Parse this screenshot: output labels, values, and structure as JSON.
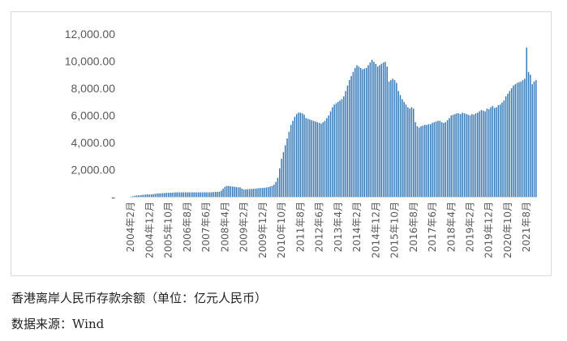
{
  "caption": {
    "title": "香港离岸人民币存款余额（单位：亿元人民币）",
    "source": "数据来源：Wind"
  },
  "chart_data": {
    "type": "bar",
    "title": "",
    "xlabel": "",
    "ylabel": "",
    "ylim": [
      0,
      12000
    ],
    "y_ticks": [
      {
        "value": 0,
        "label": "-"
      },
      {
        "value": 2000,
        "label": "2,000.00"
      },
      {
        "value": 4000,
        "label": "4,000.00"
      },
      {
        "value": 6000,
        "label": "6,000.00"
      },
      {
        "value": 8000,
        "label": "8,000.00"
      },
      {
        "value": 10000,
        "label": "10,000.00"
      },
      {
        "value": 12000,
        "label": "12,000.00"
      }
    ],
    "x_tick_labels": [
      "2004年2月",
      "2004年12月",
      "2005年10月",
      "2006年8月",
      "2007年6月",
      "2008年4月",
      "2009年2月",
      "2009年12月",
      "2010年10月",
      "2011年8月",
      "2012年6月",
      "2013年4月",
      "2014年2月",
      "2014年12月",
      "2015年10月",
      "2016年8月",
      "2017年6月",
      "2018年4月",
      "2019年2月",
      "2019年12月",
      "2020年10月",
      "2021年8月"
    ],
    "x_tick_every": 10,
    "bar_color": "#2e75b6",
    "categories": [
      "2004年2月",
      "2004年3月",
      "2004年4月",
      "2004年5月",
      "2004年6月",
      "2004年7月",
      "2004年8月",
      "2004年9月",
      "2004年10月",
      "2004年11月",
      "2004年12月",
      "2005年1月",
      "2005年2月",
      "2005年3月",
      "2005年4月",
      "2005年5月",
      "2005年6月",
      "2005年7月",
      "2005年8月",
      "2005年9月",
      "2005年10月",
      "2005年11月",
      "2005年12月",
      "2006年1月",
      "2006年2月",
      "2006年3月",
      "2006年4月",
      "2006年5月",
      "2006年6月",
      "2006年7月",
      "2006年8月",
      "2006年9月",
      "2006年10月",
      "2006年11月",
      "2006年12月",
      "2007年1月",
      "2007年2月",
      "2007年3月",
      "2007年4月",
      "2007年5月",
      "2007年6月",
      "2007年7月",
      "2007年8月",
      "2007年9月",
      "2007年10月",
      "2007年11月",
      "2007年12月",
      "2008年1月",
      "2008年2月",
      "2008年3月",
      "2008年4月",
      "2008年5月",
      "2008年6月",
      "2008年7月",
      "2008年8月",
      "2008年9月",
      "2008年10月",
      "2008年11月",
      "2008年12月",
      "2009年1月",
      "2009年2月",
      "2009年3月",
      "2009年4月",
      "2009年5月",
      "2009年6月",
      "2009年7月",
      "2009年8月",
      "2009年9月",
      "2009年10月",
      "2009年11月",
      "2009年12月",
      "2010年1月",
      "2010年2月",
      "2010年3月",
      "2010年4月",
      "2010年5月",
      "2010年6月",
      "2010年7月",
      "2010年8月",
      "2010年9月",
      "2010年10月",
      "2010年11月",
      "2010年12月",
      "2011年1月",
      "2011年2月",
      "2011年3月",
      "2011年4月",
      "2011年5月",
      "2011年6月",
      "2011年7月",
      "2011年8月",
      "2011年9月",
      "2011年10月",
      "2011年11月",
      "2011年12月",
      "2012年1月",
      "2012年2月",
      "2012年3月",
      "2012年4月",
      "2012年5月",
      "2012年6月",
      "2012年7月",
      "2012年8月",
      "2012年9月",
      "2012年10月",
      "2012年11月",
      "2012年12月",
      "2013年1月",
      "2013年2月",
      "2013年3月",
      "2013年4月",
      "2013年5月",
      "2013年6月",
      "2013年7月",
      "2013年8月",
      "2013年9月",
      "2013年10月",
      "2013年11月",
      "2013年12月",
      "2014年1月",
      "2014年2月",
      "2014年3月",
      "2014年4月",
      "2014年5月",
      "2014年6月",
      "2014年7月",
      "2014年8月",
      "2014年9月",
      "2014年10月",
      "2014年11月",
      "2014年12月",
      "2015年1月",
      "2015年2月",
      "2015年3月",
      "2015年4月",
      "2015年5月",
      "2015年6月",
      "2015年7月",
      "2015年8月",
      "2015年9月",
      "2015年10月",
      "2015年11月",
      "2015年12月",
      "2016年1月",
      "2016年2月",
      "2016年3月",
      "2016年4月",
      "2016年5月",
      "2016年6月",
      "2016年7月",
      "2016年8月",
      "2016年9月",
      "2016年10月",
      "2016年11月",
      "2016年12月",
      "2017年1月",
      "2017年2月",
      "2017年3月",
      "2017年4月",
      "2017年5月",
      "2017年6月",
      "2017年7月",
      "2017年8月",
      "2017年9月",
      "2017年10月",
      "2017年11月",
      "2017年12月",
      "2018年1月",
      "2018年2月",
      "2018年3月",
      "2018年4月",
      "2018年5月",
      "2018年6月",
      "2018年7月",
      "2018年8月",
      "2018年9月",
      "2018年10月",
      "2018年11月",
      "2018年12月",
      "2019年1月",
      "2019年2月",
      "2019年3月",
      "2019年4月",
      "2019年5月",
      "2019年6月",
      "2019年7月",
      "2019年8月",
      "2019年9月",
      "2019年10月",
      "2019年11月",
      "2019年12月",
      "2020年1月",
      "2020年2月",
      "2020年3月",
      "2020年4月",
      "2020年5月",
      "2020年6月",
      "2020年7月",
      "2020年8月",
      "2020年9月",
      "2020年10月",
      "2020年11月",
      "2020年12月",
      "2021年1月",
      "2021年2月",
      "2021年3月",
      "2021年4月",
      "2021年5月",
      "2021年6月",
      "2021年7月",
      "2021年8月",
      "2021年9月",
      "2021年10月",
      "2021年11月",
      "2021年12月",
      "2022年1月"
    ],
    "values": [
      10,
      40,
      70,
      100,
      110,
      120,
      140,
      160,
      170,
      180,
      180,
      180,
      200,
      220,
      240,
      250,
      260,
      270,
      280,
      290,
      300,
      300,
      310,
      320,
      330,
      330,
      330,
      330,
      330,
      330,
      330,
      330,
      330,
      330,
      330,
      330,
      330,
      330,
      330,
      330,
      330,
      330,
      330,
      340,
      350,
      360,
      370,
      380,
      450,
      600,
      750,
      800,
      800,
      780,
      760,
      740,
      720,
      700,
      700,
      600,
      540,
      550,
      560,
      570,
      580,
      590,
      600,
      620,
      640,
      650,
      650,
      670,
      690,
      710,
      760,
      810,
      900,
      1100,
      1400,
      2100,
      2800,
      3300,
      3800,
      4300,
      4800,
      5300,
      5600,
      5900,
      6100,
      6200,
      6200,
      6150,
      6050,
      5800,
      5750,
      5700,
      5650,
      5600,
      5550,
      5500,
      5450,
      5400,
      5500,
      5600,
      5800,
      6000,
      6300,
      6600,
      6800,
      6900,
      7000,
      7100,
      7200,
      7400,
      7800,
      8200,
      8600,
      8900,
      9200,
      9500,
      9700,
      9600,
      9500,
      9400,
      9450,
      9500,
      9700,
      9900,
      10100,
      9950,
      9800,
      9600,
      9700,
      9800,
      9900,
      9950,
      9600,
      8500,
      8600,
      8700,
      8600,
      8400,
      7800,
      7500,
      7200,
      7000,
      6800,
      6600,
      6500,
      6600,
      6500,
      5500,
      5200,
      5100,
      5200,
      5250,
      5300,
      5300,
      5350,
      5350,
      5450,
      5500,
      5550,
      5600,
      5600,
      5500,
      5450,
      5500,
      5650,
      5800,
      6000,
      6050,
      6100,
      6150,
      6150,
      6100,
      6200,
      6150,
      6100,
      6050,
      6000,
      6100,
      6050,
      6150,
      6200,
      6300,
      6400,
      6350,
      6300,
      6500,
      6450,
      6600,
      6700,
      6550,
      6600,
      6750,
      6800,
      6950,
      7100,
      7400,
      7600,
      7800,
      8000,
      8200,
      8300,
      8400,
      8450,
      8500,
      8600,
      8700,
      11000,
      9200,
      9000,
      8300,
      8500,
      8600
    ]
  }
}
